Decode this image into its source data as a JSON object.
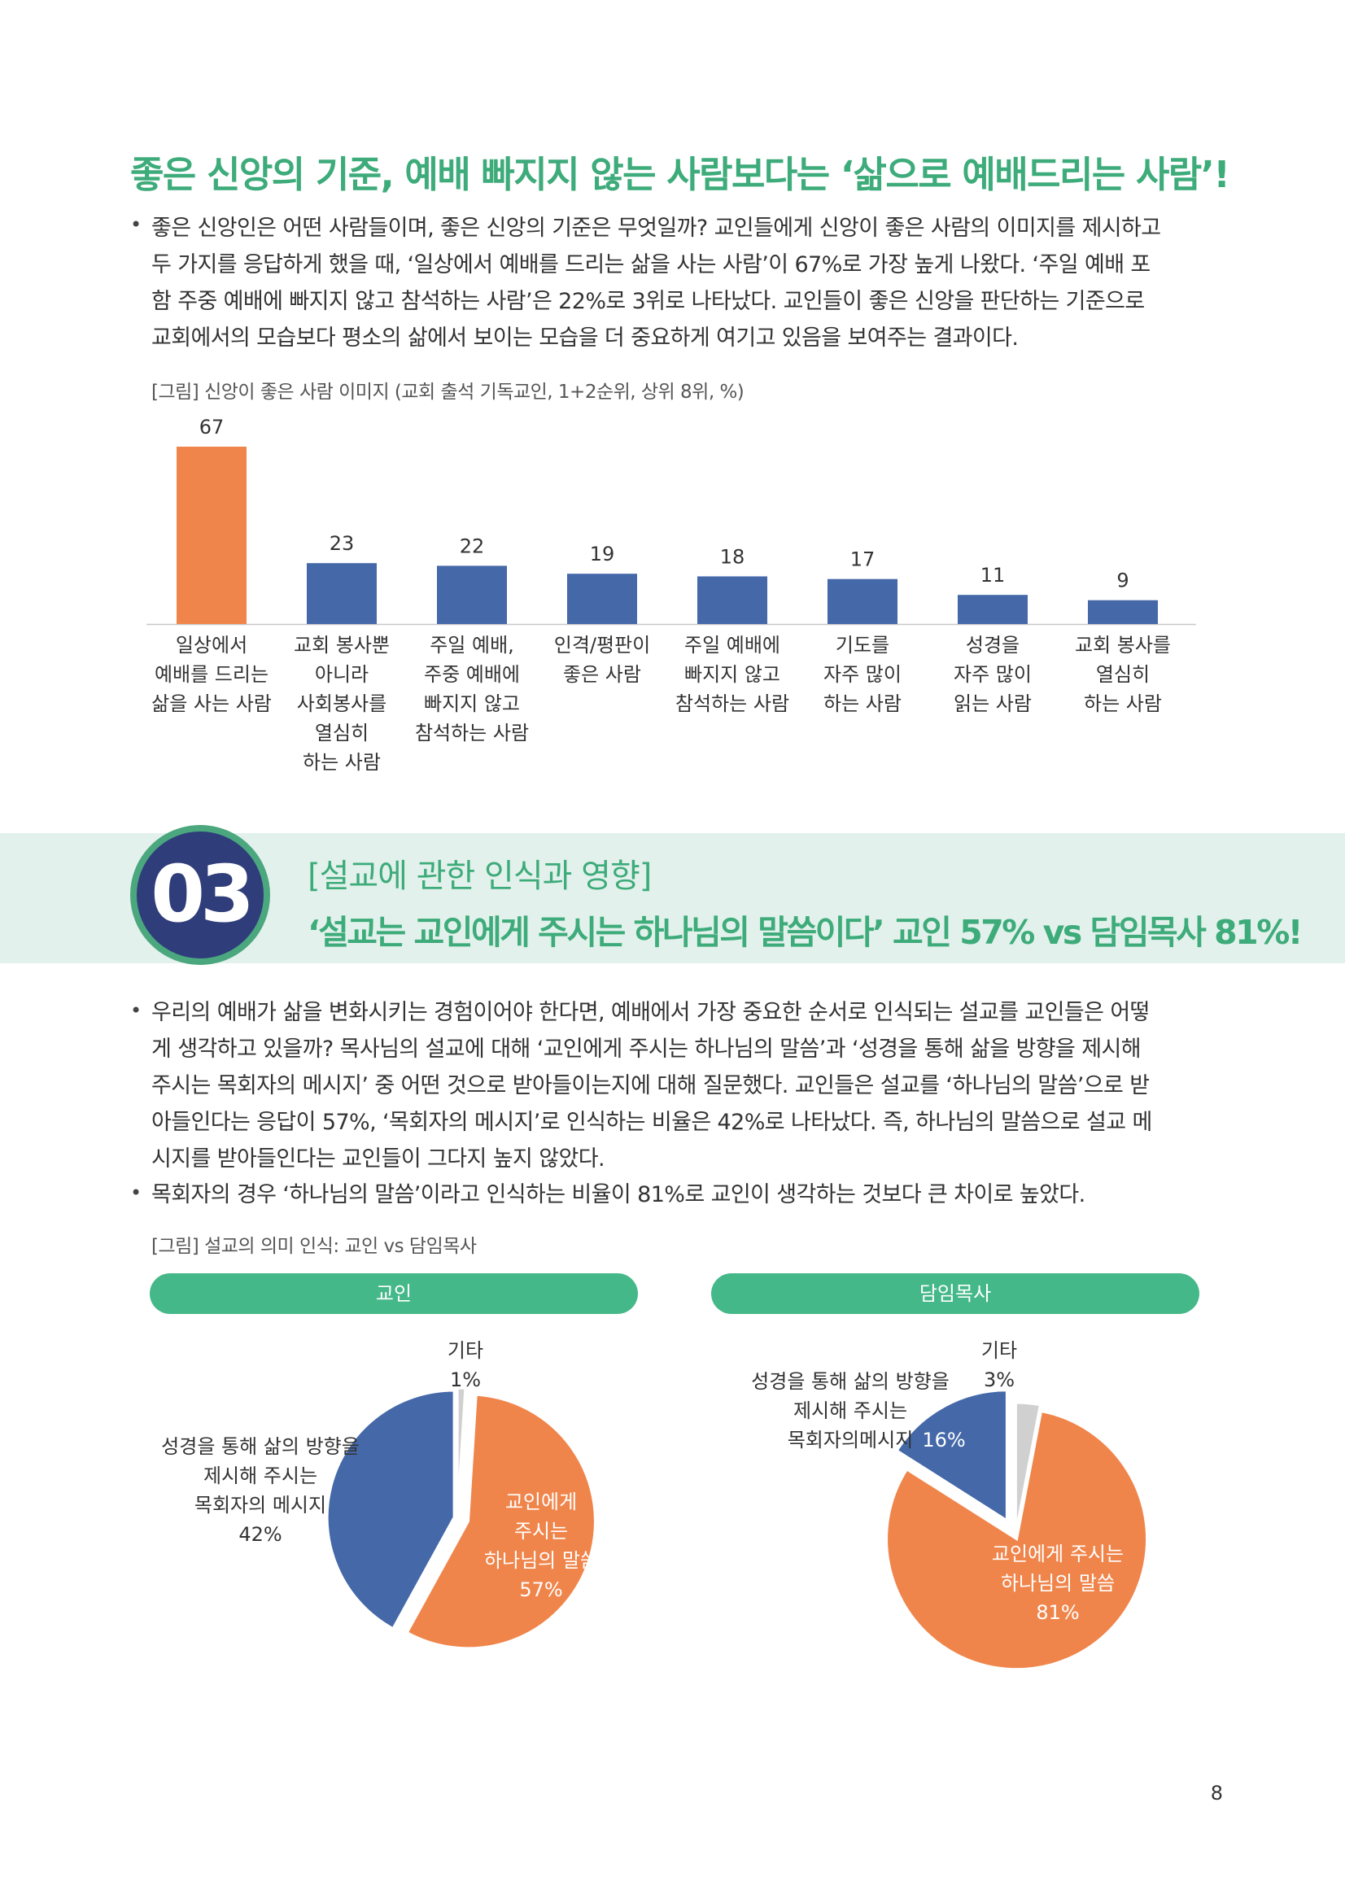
{
  "heading": "좋은 신앙의 기준, 예배 빠지지 않는 사람보다는 ‘삶으로 예배드리는 사람’!",
  "intro_paragraph": [
    "좋은 신앙인은 어떤 사람들이며, 좋은 신앙의 기준은 무엇일까? 교인들에게 신앙이 좋은 사람의 이미지를 제시하고",
    "두 가지를 응답하게 했을 때, ‘일상에서 예배를 드리는 삶을 사는 사람’이 67%로 가장 높게 나왔다. ‘주일 예배 포",
    "함 주중 예배에 빠지지 않고 참석하는 사람’은 22%로 3위로 나타났다. 교인들이 좋은 신앙을 판단하는 기준으로",
    "교회에서의 모습보다 평소의 삶에서 보이는 모습을 더 중요하게 여기고 있음을 보여주는 결과이다."
  ],
  "bullet_symbol": "•",
  "figure1_caption": "[그림] 신앙이 좋은 사람 이미지 (교회 출석 기독교인, 1+2순위, 상위 8위, %)",
  "chart_data": [
    {
      "type": "bar",
      "categories": [
        [
          "일상에서",
          "예배를 드리는",
          "삶을 사는 사람"
        ],
        [
          "교회 봉사뿐",
          "아니라",
          "사회봉사를",
          "열심히",
          "하는 사람"
        ],
        [
          "주일 예배,",
          "주중 예배에",
          "빠지지 않고",
          "참석하는 사람"
        ],
        [
          "인격/평판이",
          "좋은 사람"
        ],
        [
          "주일 예배에",
          "빠지지 않고",
          "참석하는 사람"
        ],
        [
          "기도를",
          "자주 많이",
          "하는 사람"
        ],
        [
          "성경을",
          "자주 많이",
          "읽는 사람"
        ],
        [
          "교회 봉사를",
          "열심히",
          "하는 사람"
        ]
      ],
      "values": [
        67,
        23,
        22,
        19,
        18,
        17,
        11,
        9
      ],
      "value_labels": [
        "67",
        "23",
        "22",
        "19",
        "18",
        "17",
        "11",
        "9"
      ],
      "ylim": [
        0,
        67
      ],
      "highlight_color": "#f0854b",
      "bar_color": "#4468a8"
    },
    {
      "type": "pie",
      "title": "교인",
      "slices": [
        {
          "label": [
            "교인에게",
            "주시는",
            "하나님의 말씀"
          ],
          "value": 57,
          "value_label": "57%",
          "color": "#f0854b"
        },
        {
          "label": [
            "성경을 통해 삶의 방향을",
            "제시해 주시는",
            "목회자의 메시지"
          ],
          "value": 42,
          "value_label": "42%",
          "color": "#4468a8"
        },
        {
          "label": [
            "기타"
          ],
          "value": 1,
          "value_label": "1%",
          "color": "#d0d0d0"
        }
      ]
    },
    {
      "type": "pie",
      "title": "담임목사",
      "slices": [
        {
          "label": [
            "교인에게 주시는",
            "하나님의 말씀"
          ],
          "value": 81,
          "value_label": "81%",
          "color": "#f0854b"
        },
        {
          "label": [
            "성경을 통해 삶의 방향을",
            "제시해 주시는",
            "목회자의메시지"
          ],
          "value": 16,
          "value_label": "16%",
          "color": "#4468a8"
        },
        {
          "label": [
            "기타"
          ],
          "value": 3,
          "value_label": "3%",
          "color": "#d0d0d0"
        }
      ]
    }
  ],
  "section": {
    "number": "03",
    "subtitle": "[설교에 관한 인식과 영향]",
    "title": "‘설교는 교인에게 주시는 하나님의 말씀이다’ 교인 57% vs 담임목사 81%!"
  },
  "section_bullets": [
    [
      "우리의 예배가 삶을 변화시키는 경험이어야 한다면, 예배에서 가장 중요한 순서로 인식되는 설교를 교인들은 어떻",
      "게 생각하고 있을까? 목사님의 설교에 대해 ‘교인에게 주시는 하나님의 말씀’과 ‘성경을 통해 삶을 방향을 제시해",
      "주시는 목회자의 메시지’ 중 어떤 것으로 받아들이는지에 대해 질문했다. 교인들은 설교를 ‘하나님의 말씀’으로 받",
      "아들인다는 응답이 57%, ‘목회자의 메시지’로 인식하는 비율은 42%로 나타났다. 즉, 하나님의 말씀으로 설교 메",
      "시지를 받아들인다는 교인들이 그다지 높지 않았다."
    ],
    [
      "목회자의 경우 ‘하나님의 말씀’이라고 인식하는 비율이 81%로 교인이 생각하는 것보다 큰 차이로 높았다."
    ]
  ],
  "figure2_caption": "[그림] 설교의 의미 인식: 교인 vs 담임목사",
  "page_number": "8"
}
